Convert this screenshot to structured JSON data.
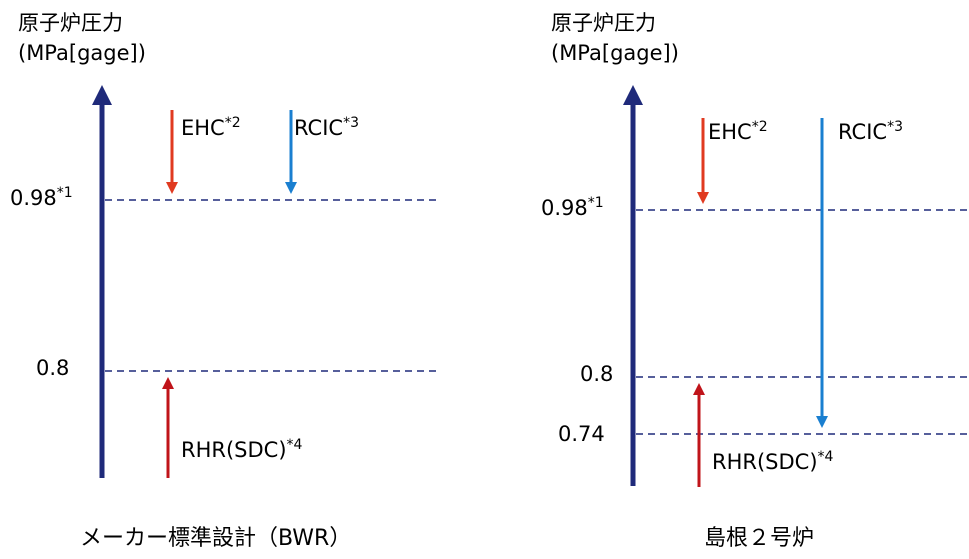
{
  "left_panel": {
    "axis_title": "原子炉圧力\n(MPa[gage])",
    "ticks": [
      "0.98",
      "0.8"
    ],
    "tick_note": "*1",
    "ehc": {
      "label": "EHC",
      "note": "*2"
    },
    "rcic": {
      "label": "RCIC",
      "note": "*3"
    },
    "rhr": {
      "label": "RHR(SDC)",
      "note": "*4"
    },
    "caption": "メーカー標準設計（BWR）"
  },
  "right_panel": {
    "axis_title": "原子炉圧力\n(MPa[gage])",
    "ticks": [
      "0.98",
      "0.8",
      "0.74"
    ],
    "tick_note": "*1",
    "ehc": {
      "label": "EHC",
      "note": "*2"
    },
    "rcic": {
      "label": "RCIC",
      "note": "*3"
    },
    "rhr": {
      "label": "RHR(SDC)",
      "note": "*4"
    },
    "caption": "島根２号炉"
  },
  "colors": {
    "axis": "#1f2a7a",
    "ehc": "#e03a20",
    "rcic": "#1a7fd0",
    "rhr": "#c0141a",
    "dashed": "#1f2a7a"
  }
}
